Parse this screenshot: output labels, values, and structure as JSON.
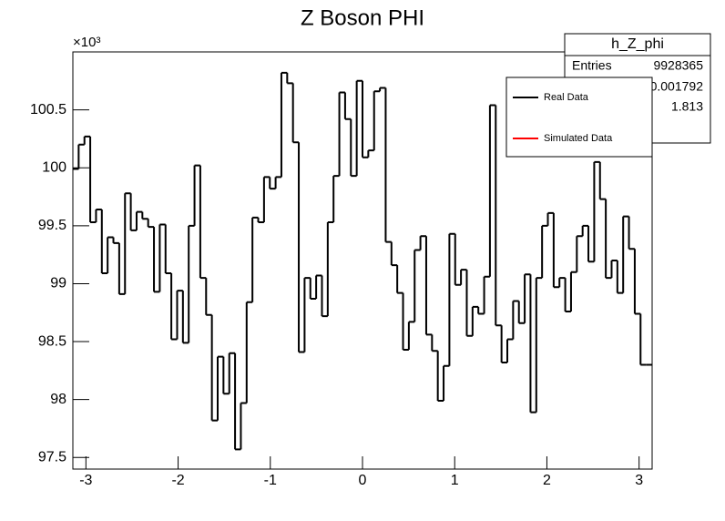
{
  "chart_data": {
    "type": "histogram",
    "title": "Z Boson PHI",
    "y_multiplier": "×10³",
    "color": "#000000",
    "bins": [
      -3.1416,
      -3.0788,
      -3.0159,
      -2.9531,
      -2.8903,
      -2.8274,
      -2.7646,
      -2.7018,
      -2.6389,
      -2.5761,
      -2.5133,
      -2.4504,
      -2.3876,
      -2.3248,
      -2.2619,
      -2.1991,
      -2.1363,
      -2.0735,
      -2.0106,
      -1.9478,
      -1.885,
      -1.8221,
      -1.7593,
      -1.6965,
      -1.6336,
      -1.5708,
      -1.508,
      -1.4451,
      -1.3823,
      -1.3195,
      -1.2566,
      -1.1938,
      -1.131,
      -1.0681,
      -1.0053,
      -0.9425,
      -0.8796,
      -0.8168,
      -0.754,
      -0.6912,
      -0.6283,
      -0.5655,
      -0.5027,
      -0.4398,
      -0.377,
      -0.3142,
      -0.2513,
      -0.1885,
      -0.1257,
      -0.0628,
      0,
      0.0628,
      0.1257,
      0.1885,
      0.2513,
      0.3142,
      0.377,
      0.4398,
      0.5027,
      0.5655,
      0.6283,
      0.6912,
      0.754,
      0.8168,
      0.8796,
      0.9425,
      1.0053,
      1.0681,
      1.131,
      1.1938,
      1.2566,
      1.3195,
      1.3823,
      1.4451,
      1.508,
      1.5708,
      1.6336,
      1.6965,
      1.7593,
      1.8221,
      1.885,
      1.9478,
      2.0106,
      2.0735,
      2.1363,
      2.1991,
      2.2619,
      2.3248,
      2.3876,
      2.4504,
      2.5133,
      2.5761,
      2.6389,
      2.7018,
      2.7646,
      2.8274,
      2.8903,
      2.9531,
      3.0159,
      3.0788,
      3.1416
    ],
    "values": [
      99.99,
      100.2,
      100.27,
      99.53,
      99.64,
      99.09,
      99.4,
      99.35,
      98.91,
      99.78,
      99.46,
      99.62,
      99.56,
      99.49,
      98.93,
      99.51,
      99.09,
      98.52,
      98.94,
      98.49,
      99.5,
      100.02,
      99.05,
      98.73,
      97.82,
      98.37,
      98.05,
      98.4,
      97.57,
      97.97,
      98.84,
      99.57,
      99.53,
      99.92,
      99.82,
      99.92,
      100.82,
      100.73,
      100.22,
      98.41,
      99.05,
      98.87,
      99.07,
      98.72,
      99.53,
      99.93,
      100.65,
      100.42,
      99.93,
      100.75,
      100.09,
      100.15,
      100.66,
      100.69,
      99.36,
      99.16,
      98.92,
      98.43,
      98.67,
      99.29,
      99.41,
      98.56,
      98.42,
      97.99,
      98.29,
      99.43,
      98.99,
      99.12,
      98.55,
      98.8,
      98.74,
      99.06,
      100.54,
      98.64,
      98.32,
      98.52,
      98.85,
      98.66,
      99.08,
      97.89,
      99.05,
      99.5,
      99.61,
      98.97,
      99.05,
      98.76,
      99.1,
      99.41,
      99.5,
      99.19,
      100.05,
      99.73,
      99.05,
      99.2,
      98.92,
      99.58,
      99.3,
      98.74,
      98.3,
      98.3
    ],
    "xlim": [
      -3.1416,
      3.1416
    ],
    "ylim": [
      97.4,
      101.0
    ],
    "xticks": [
      -3,
      -2,
      -1,
      0,
      1,
      2,
      3
    ],
    "yticks": [
      97.5,
      98,
      98.5,
      99,
      99.5,
      100,
      100.5
    ],
    "legend": {
      "position": "top-right",
      "entries": [
        {
          "name": "Real Data",
          "color": "#000000"
        },
        {
          "name": "Simulated Data",
          "color": "#ff0000"
        }
      ]
    },
    "stats": {
      "title": "h_Z_phi",
      "rows": [
        {
          "label": "Entries",
          "value": "9928365"
        },
        {
          "value": "0.001792"
        },
        {
          "value": "1.813"
        }
      ]
    }
  }
}
